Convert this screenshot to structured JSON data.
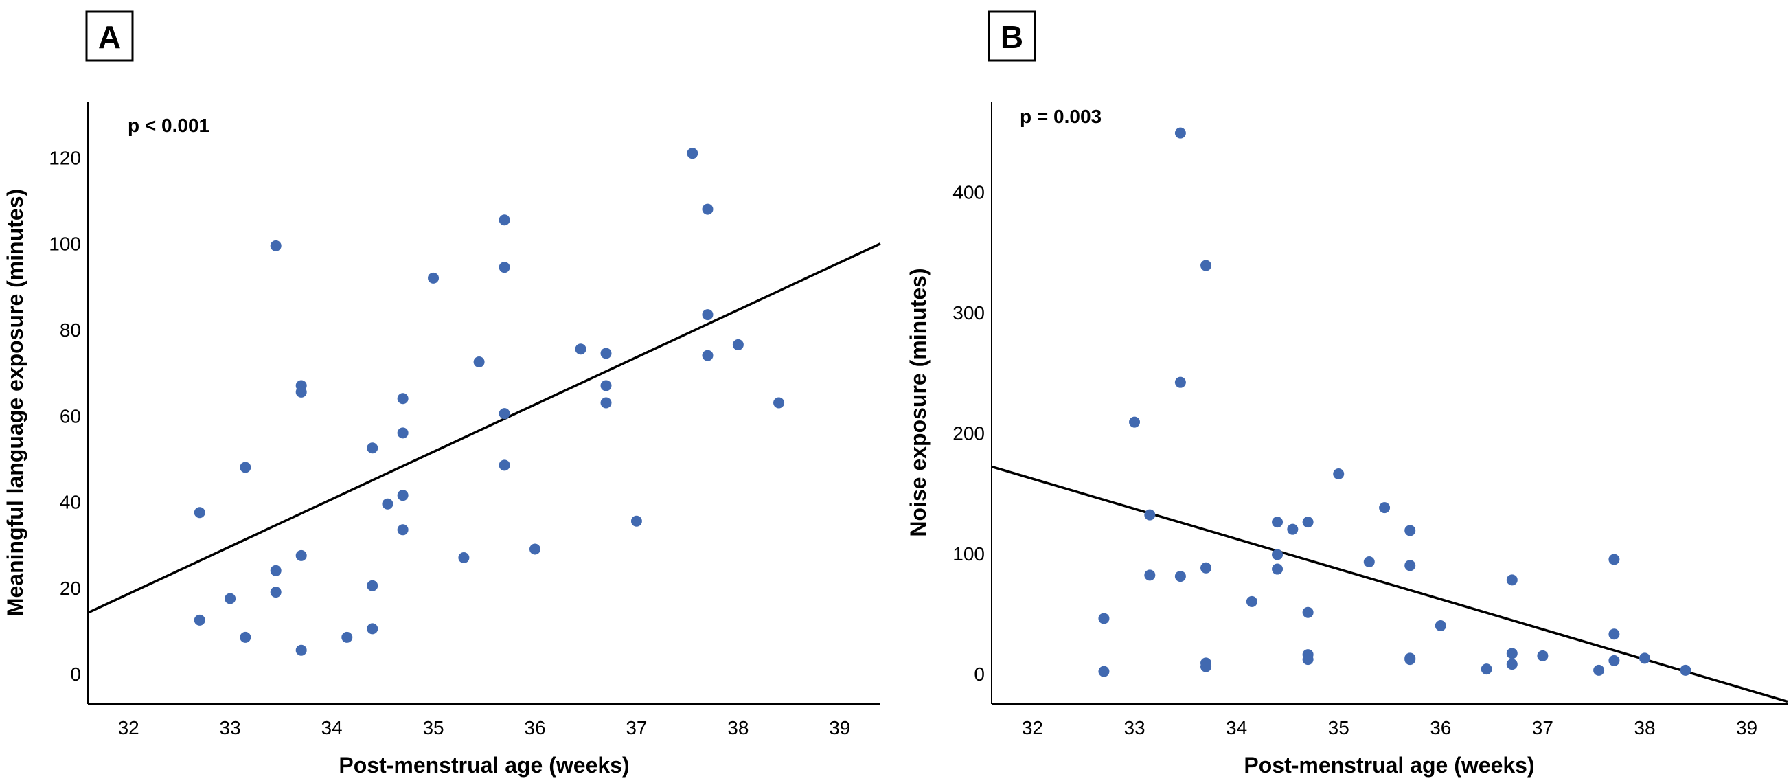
{
  "chart_data": [
    {
      "type": "scatter",
      "panel_label": "A",
      "annotation": "p < 0.001",
      "xlabel": "Post-menstrual age (weeks)",
      "ylabel": "Meaningful language exposure (minutes)",
      "xlim": [
        31.6,
        39.4
      ],
      "ylim": [
        -7,
        133
      ],
      "xticks": [
        32,
        33,
        34,
        35,
        36,
        37,
        38,
        39
      ],
      "yticks": [
        0,
        20,
        40,
        60,
        80,
        100,
        120
      ],
      "marker_color": "#4169b0",
      "line_color": "#000000",
      "grid": false,
      "points": [
        [
          32.7,
          37.5
        ],
        [
          32.7,
          12.5
        ],
        [
          33.0,
          17.5
        ],
        [
          33.15,
          48.0
        ],
        [
          33.15,
          8.5
        ],
        [
          33.45,
          99.5
        ],
        [
          33.45,
          24.0
        ],
        [
          33.45,
          19.0
        ],
        [
          33.7,
          67.0
        ],
        [
          33.7,
          65.5
        ],
        [
          33.7,
          27.5
        ],
        [
          33.7,
          5.5
        ],
        [
          34.15,
          8.5
        ],
        [
          34.4,
          52.5
        ],
        [
          34.4,
          20.5
        ],
        [
          34.4,
          10.5
        ],
        [
          34.55,
          39.5
        ],
        [
          34.7,
          64.0
        ],
        [
          34.7,
          56.0
        ],
        [
          34.7,
          41.5
        ],
        [
          34.7,
          33.5
        ],
        [
          35.0,
          92.0
        ],
        [
          35.3,
          27.0
        ],
        [
          35.45,
          72.5
        ],
        [
          35.7,
          105.5
        ],
        [
          35.7,
          94.5
        ],
        [
          35.7,
          60.5
        ],
        [
          35.7,
          48.5
        ],
        [
          36.0,
          29.0
        ],
        [
          36.45,
          75.5
        ],
        [
          36.7,
          74.5
        ],
        [
          36.7,
          67.0
        ],
        [
          36.7,
          63.0
        ],
        [
          37.0,
          35.5
        ],
        [
          37.55,
          121.0
        ],
        [
          37.7,
          108.0
        ],
        [
          37.7,
          83.5
        ],
        [
          37.7,
          74.0
        ],
        [
          38.0,
          76.5
        ],
        [
          38.4,
          63.0
        ]
      ],
      "fit_line": [
        [
          31.6,
          14.2
        ],
        [
          39.4,
          100.0
        ]
      ]
    },
    {
      "type": "scatter",
      "panel_label": "B",
      "annotation": "p = 0.003",
      "xlabel": "Post-menstrual age (weeks)",
      "ylabel": "Noise exposure (minutes)",
      "xlim": [
        31.6,
        39.4
      ],
      "ylim": [
        -25,
        475
      ],
      "xticks": [
        32,
        33,
        34,
        35,
        36,
        37,
        38,
        39
      ],
      "yticks": [
        0,
        100,
        200,
        300,
        400
      ],
      "marker_color": "#4169b0",
      "line_color": "#000000",
      "grid": false,
      "points": [
        [
          32.7,
          46
        ],
        [
          32.7,
          2
        ],
        [
          33.0,
          209
        ],
        [
          33.15,
          132
        ],
        [
          33.15,
          82
        ],
        [
          33.45,
          449
        ],
        [
          33.45,
          242
        ],
        [
          33.45,
          81
        ],
        [
          33.7,
          339
        ],
        [
          33.7,
          88
        ],
        [
          33.7,
          9
        ],
        [
          33.7,
          6
        ],
        [
          34.15,
          60
        ],
        [
          34.4,
          126
        ],
        [
          34.4,
          99
        ],
        [
          34.4,
          87
        ],
        [
          34.55,
          120
        ],
        [
          34.7,
          126
        ],
        [
          34.7,
          51
        ],
        [
          34.7,
          16
        ],
        [
          34.7,
          12
        ],
        [
          35.0,
          166
        ],
        [
          35.3,
          93
        ],
        [
          35.45,
          138
        ],
        [
          35.7,
          119
        ],
        [
          35.7,
          90
        ],
        [
          35.7,
          13
        ],
        [
          35.7,
          12
        ],
        [
          36.0,
          40
        ],
        [
          36.45,
          4
        ],
        [
          36.7,
          78
        ],
        [
          36.7,
          17
        ],
        [
          36.7,
          8
        ],
        [
          37.0,
          15
        ],
        [
          37.55,
          3
        ],
        [
          37.7,
          95
        ],
        [
          37.7,
          33
        ],
        [
          37.7,
          11
        ],
        [
          38.0,
          13
        ],
        [
          38.4,
          3
        ]
      ],
      "fit_line": [
        [
          31.6,
          172
        ],
        [
          39.4,
          -23
        ]
      ]
    }
  ]
}
